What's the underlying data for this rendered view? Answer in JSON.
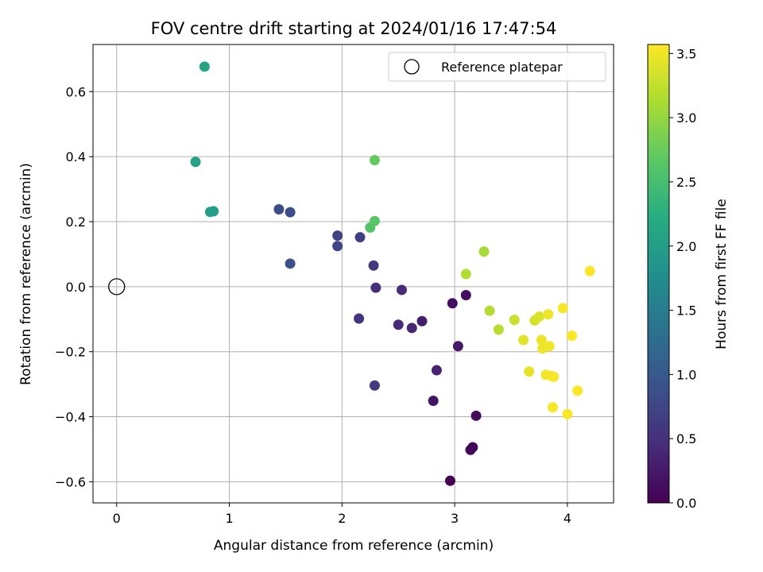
{
  "chart_data": {
    "type": "scatter",
    "title": "FOV centre drift starting at 2024/01/16 17:47:54",
    "xlabel": "Angular distance from reference (arcmin)",
    "ylabel": "Rotation from reference (arcmin)",
    "xlim": [
      -0.21,
      4.41
    ],
    "ylim": [
      -0.665,
      0.745
    ],
    "x_ticks": [
      0,
      1,
      2,
      3,
      4
    ],
    "x_tick_labels": [
      "0",
      "1",
      "2",
      "3",
      "4"
    ],
    "y_ticks": [
      -0.6,
      -0.4,
      -0.2,
      0.0,
      0.2,
      0.4,
      0.6
    ],
    "y_tick_labels": [
      "−0.6",
      "−0.4",
      "−0.2",
      "0.0",
      "0.2",
      "0.4",
      "0.6"
    ],
    "grid": true,
    "colormap": "viridis",
    "colorbar": {
      "label": "Hours from first FF file",
      "range": [
        0,
        3.57
      ],
      "ticks": [
        0.0,
        0.5,
        1.0,
        1.5,
        2.0,
        2.5,
        3.0,
        3.5
      ],
      "tick_labels": [
        "0.0",
        "0.5",
        "1.0",
        "1.5",
        "2.0",
        "2.5",
        "3.0",
        "3.5"
      ]
    },
    "legend": {
      "position": "top-right",
      "entries": [
        "Reference platepar"
      ]
    },
    "reference_point": {
      "x": 0.0,
      "y": 0.0
    },
    "points": [
      {
        "x": 2.96,
        "y": -0.597,
        "c": 0.0
      },
      {
        "x": 3.14,
        "y": -0.502,
        "c": 0.05
      },
      {
        "x": 3.16,
        "y": -0.494,
        "c": 0.07
      },
      {
        "x": 3.19,
        "y": -0.397,
        "c": 0.1
      },
      {
        "x": 3.1,
        "y": -0.026,
        "c": 0.12
      },
      {
        "x": 2.98,
        "y": -0.051,
        "c": 0.15
      },
      {
        "x": 2.81,
        "y": -0.351,
        "c": 0.2
      },
      {
        "x": 3.03,
        "y": -0.183,
        "c": 0.25
      },
      {
        "x": 2.71,
        "y": -0.106,
        "c": 0.3
      },
      {
        "x": 2.84,
        "y": -0.257,
        "c": 0.33
      },
      {
        "x": 2.62,
        "y": -0.127,
        "c": 0.38
      },
      {
        "x": 2.5,
        "y": -0.117,
        "c": 0.42
      },
      {
        "x": 2.53,
        "y": -0.01,
        "c": 0.45
      },
      {
        "x": 2.3,
        "y": -0.003,
        "c": 0.5
      },
      {
        "x": 2.15,
        "y": -0.098,
        "c": 0.55
      },
      {
        "x": 2.29,
        "y": -0.304,
        "c": 0.6
      },
      {
        "x": 2.28,
        "y": 0.065,
        "c": 0.62
      },
      {
        "x": 2.16,
        "y": 0.152,
        "c": 0.68
      },
      {
        "x": 1.96,
        "y": 0.157,
        "c": 0.72
      },
      {
        "x": 1.96,
        "y": 0.125,
        "c": 0.75
      },
      {
        "x": 1.44,
        "y": 0.238,
        "c": 0.82
      },
      {
        "x": 1.54,
        "y": 0.229,
        "c": 0.85
      },
      {
        "x": 1.54,
        "y": 0.071,
        "c": 0.88
      },
      {
        "x": 0.86,
        "y": 0.232,
        "c": 2.0
      },
      {
        "x": 0.83,
        "y": 0.23,
        "c": 2.02
      },
      {
        "x": 0.7,
        "y": 0.384,
        "c": 2.05
      },
      {
        "x": 0.78,
        "y": 0.677,
        "c": 2.1
      },
      {
        "x": 2.25,
        "y": 0.182,
        "c": 2.6
      },
      {
        "x": 2.29,
        "y": 0.202,
        "c": 2.65
      },
      {
        "x": 2.29,
        "y": 0.389,
        "c": 2.72
      },
      {
        "x": 3.26,
        "y": 0.108,
        "c": 3.1
      },
      {
        "x": 3.1,
        "y": 0.039,
        "c": 3.15
      },
      {
        "x": 3.31,
        "y": -0.074,
        "c": 3.18
      },
      {
        "x": 3.39,
        "y": -0.132,
        "c": 3.2
      },
      {
        "x": 3.53,
        "y": -0.102,
        "c": 3.3
      },
      {
        "x": 3.71,
        "y": -0.104,
        "c": 3.35
      },
      {
        "x": 3.75,
        "y": -0.092,
        "c": 3.38
      },
      {
        "x": 3.61,
        "y": -0.164,
        "c": 3.42
      },
      {
        "x": 3.66,
        "y": -0.261,
        "c": 3.45
      },
      {
        "x": 3.77,
        "y": -0.164,
        "c": 3.47
      },
      {
        "x": 3.78,
        "y": -0.19,
        "c": 3.48
      },
      {
        "x": 3.83,
        "y": -0.085,
        "c": 3.49
      },
      {
        "x": 3.84,
        "y": -0.183,
        "c": 3.5
      },
      {
        "x": 3.81,
        "y": -0.271,
        "c": 3.51
      },
      {
        "x": 3.86,
        "y": -0.275,
        "c": 3.52
      },
      {
        "x": 3.88,
        "y": -0.277,
        "c": 3.53
      },
      {
        "x": 3.96,
        "y": -0.066,
        "c": 3.54
      },
      {
        "x": 3.87,
        "y": -0.371,
        "c": 3.55
      },
      {
        "x": 4.0,
        "y": -0.392,
        "c": 3.55
      },
      {
        "x": 4.04,
        "y": -0.151,
        "c": 3.56
      },
      {
        "x": 4.09,
        "y": -0.32,
        "c": 3.56
      },
      {
        "x": 4.2,
        "y": 0.048,
        "c": 3.57
      }
    ]
  }
}
